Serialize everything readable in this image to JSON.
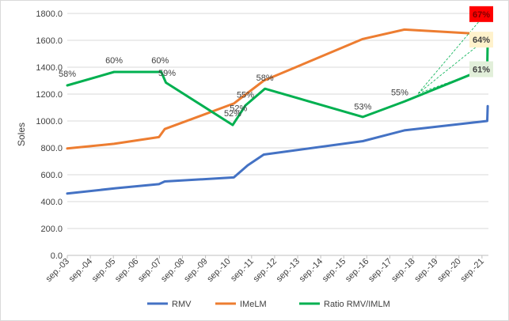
{
  "chart_data": {
    "type": "line",
    "ylabel": "Soles",
    "ylim": [
      0,
      1800
    ],
    "ytick_step": 200,
    "y_tick_labels": [
      "0.0",
      "200.0",
      "400.0",
      "600.0",
      "800.0",
      "1000.0",
      "1200.0",
      "1400.0",
      "1600.0",
      "1800.0"
    ],
    "x_ticks": [
      {
        "label": "sep.-03",
        "x": 2003.67
      },
      {
        "label": "sep.-04",
        "x": 2004.67
      },
      {
        "label": "sep.-05",
        "x": 2005.67
      },
      {
        "label": "sep.-06",
        "x": 2006.67
      },
      {
        "label": "sep.-07",
        "x": 2007.67
      },
      {
        "label": "sep.-08",
        "x": 2008.67
      },
      {
        "label": "sep.-09",
        "x": 2009.67
      },
      {
        "label": "sep.-10",
        "x": 2010.67
      },
      {
        "label": "sep.-11",
        "x": 2011.67
      },
      {
        "label": "sep.-12",
        "x": 2012.67
      },
      {
        "label": "sep.-13",
        "x": 2013.67
      },
      {
        "label": "sep.-14",
        "x": 2014.67
      },
      {
        "label": "sep.-15",
        "x": 2015.67
      },
      {
        "label": "sep.-16",
        "x": 2016.67
      },
      {
        "label": "sep.-17",
        "x": 2017.67
      },
      {
        "label": "sep.-18",
        "x": 2018.67
      },
      {
        "label": "sep.-19",
        "x": 2019.67
      },
      {
        "label": "sep.-20",
        "x": 2020.67
      },
      {
        "label": "sep.-21",
        "x": 2021.67
      }
    ],
    "xlim": [
      2003.67,
      2021.95
    ],
    "series": [
      {
        "name": "RMV",
        "color": "#4472C4",
        "points": [
          [
            2003.67,
            460
          ],
          [
            2005.8,
            500
          ],
          [
            2007.65,
            530
          ],
          [
            2007.9,
            550
          ],
          [
            2010.9,
            580
          ],
          [
            2011.5,
            670
          ],
          [
            2012.2,
            750
          ],
          [
            2016.5,
            850
          ],
          [
            2018.3,
            930
          ],
          [
            2021.9,
            1000
          ],
          [
            2021.92,
            1110
          ]
        ]
      },
      {
        "name": "IMeLM",
        "color": "#ED7D31",
        "points": [
          [
            2003.67,
            795
          ],
          [
            2005.7,
            830
          ],
          [
            2007.65,
            880
          ],
          [
            2007.9,
            940
          ],
          [
            2010.9,
            1130
          ],
          [
            2012.2,
            1300
          ],
          [
            2016.5,
            1610
          ],
          [
            2018.3,
            1680
          ],
          [
            2021.9,
            1645
          ]
        ]
      },
      {
        "name": "Ratio RMV/IMLM",
        "color": "#00B050",
        "points": [
          [
            2003.67,
            1265
          ],
          [
            2005.7,
            1365
          ],
          [
            2007.75,
            1365
          ],
          [
            2007.95,
            1285
          ],
          [
            2010.85,
            970
          ],
          [
            2011.4,
            1115
          ],
          [
            2012.25,
            1240
          ],
          [
            2016.5,
            1030
          ],
          [
            2018.3,
            1145
          ],
          [
            2021.9,
            1395
          ],
          [
            2021.92,
            1600
          ]
        ]
      }
    ],
    "annotations": [
      {
        "text": "58%",
        "x": 2003.67,
        "y": 1330
      },
      {
        "text": "60%",
        "x": 2005.7,
        "y": 1430
      },
      {
        "text": "60%",
        "x": 2007.7,
        "y": 1430
      },
      {
        "text": "59%",
        "x": 2008.0,
        "y": 1335
      },
      {
        "text": "52%",
        "x": 2010.85,
        "y": 1035
      },
      {
        "text": "52%",
        "x": 2011.1,
        "y": 1075
      },
      {
        "text": "55%",
        "x": 2011.4,
        "y": 1175
      },
      {
        "text": "58%",
        "x": 2012.25,
        "y": 1300
      },
      {
        "text": "53%",
        "x": 2016.5,
        "y": 1085
      },
      {
        "text": "55%",
        "x": 2018.1,
        "y": 1190
      }
    ],
    "callouts": [
      {
        "text": "67%",
        "box": "#ff0000",
        "textcolor": "#7f0000",
        "x": 2021.95,
        "y": 1795
      },
      {
        "text": "64%",
        "box": "#fff2cc",
        "textcolor": "#404040",
        "x": 2021.95,
        "y": 1605
      },
      {
        "text": "61%",
        "box": "#e2efda",
        "textcolor": "#404040",
        "x": 2021.95,
        "y": 1385
      }
    ],
    "legend_position": "bottom"
  },
  "legend": {
    "items": [
      {
        "label": "RMV",
        "color": "#4472C4"
      },
      {
        "label": "IMeLM",
        "color": "#ED7D31"
      },
      {
        "label": "Ratio RMV/IMLM",
        "color": "#00B050"
      }
    ]
  }
}
